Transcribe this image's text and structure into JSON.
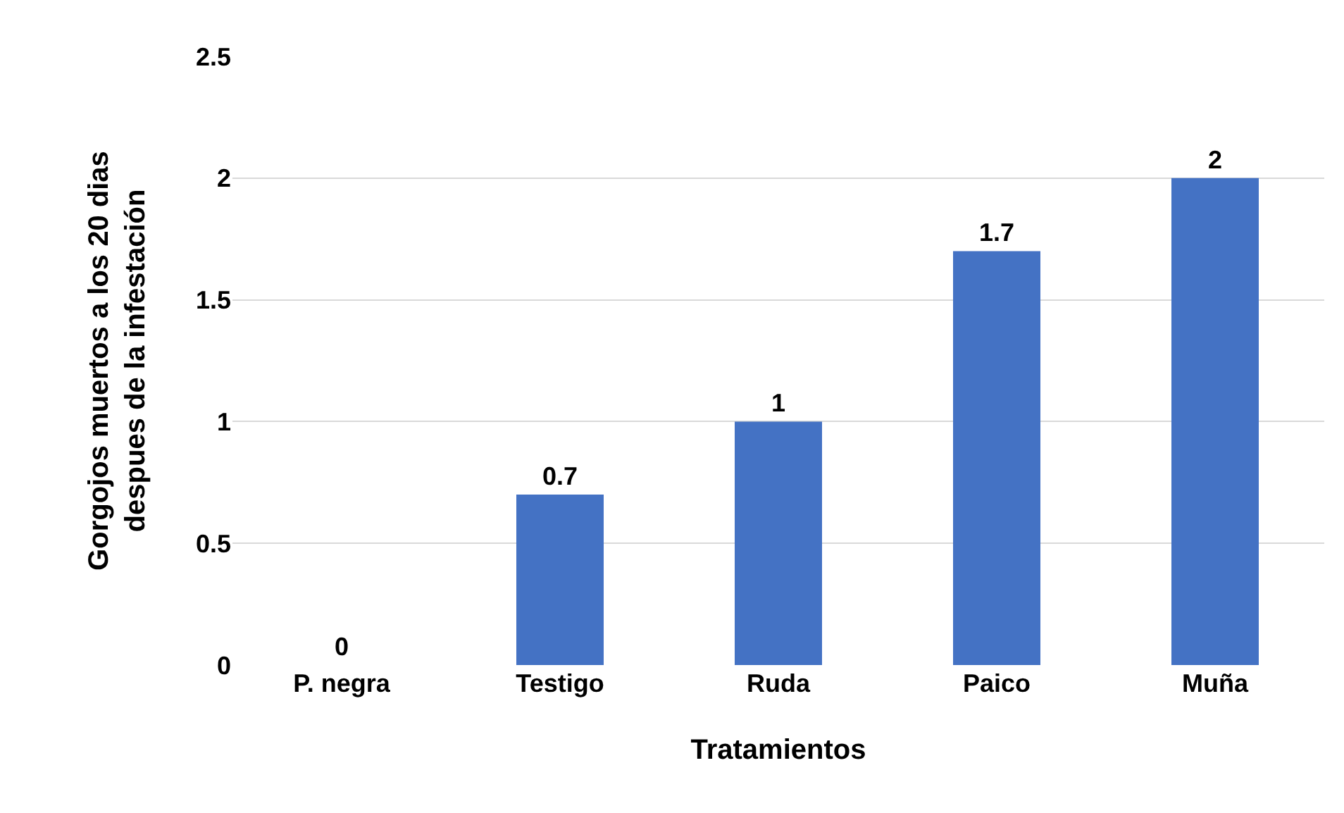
{
  "chart_data": {
    "type": "bar",
    "xlabel": "Tratamientos",
    "ylabel": "Gorgojos muertos a los 20 dias\ndespues de la infestación",
    "categories": [
      "P. negra",
      "Testigo",
      "Ruda",
      "Paico",
      "Muña"
    ],
    "values": [
      0,
      0.7,
      1,
      1.7,
      2
    ],
    "color": "#4472c4",
    "ylim": [
      0,
      2.5
    ],
    "yticks": [
      0,
      0.5,
      1,
      1.5,
      2,
      2.5
    ],
    "grid": "y",
    "data_labels": true,
    "legend": false
  }
}
